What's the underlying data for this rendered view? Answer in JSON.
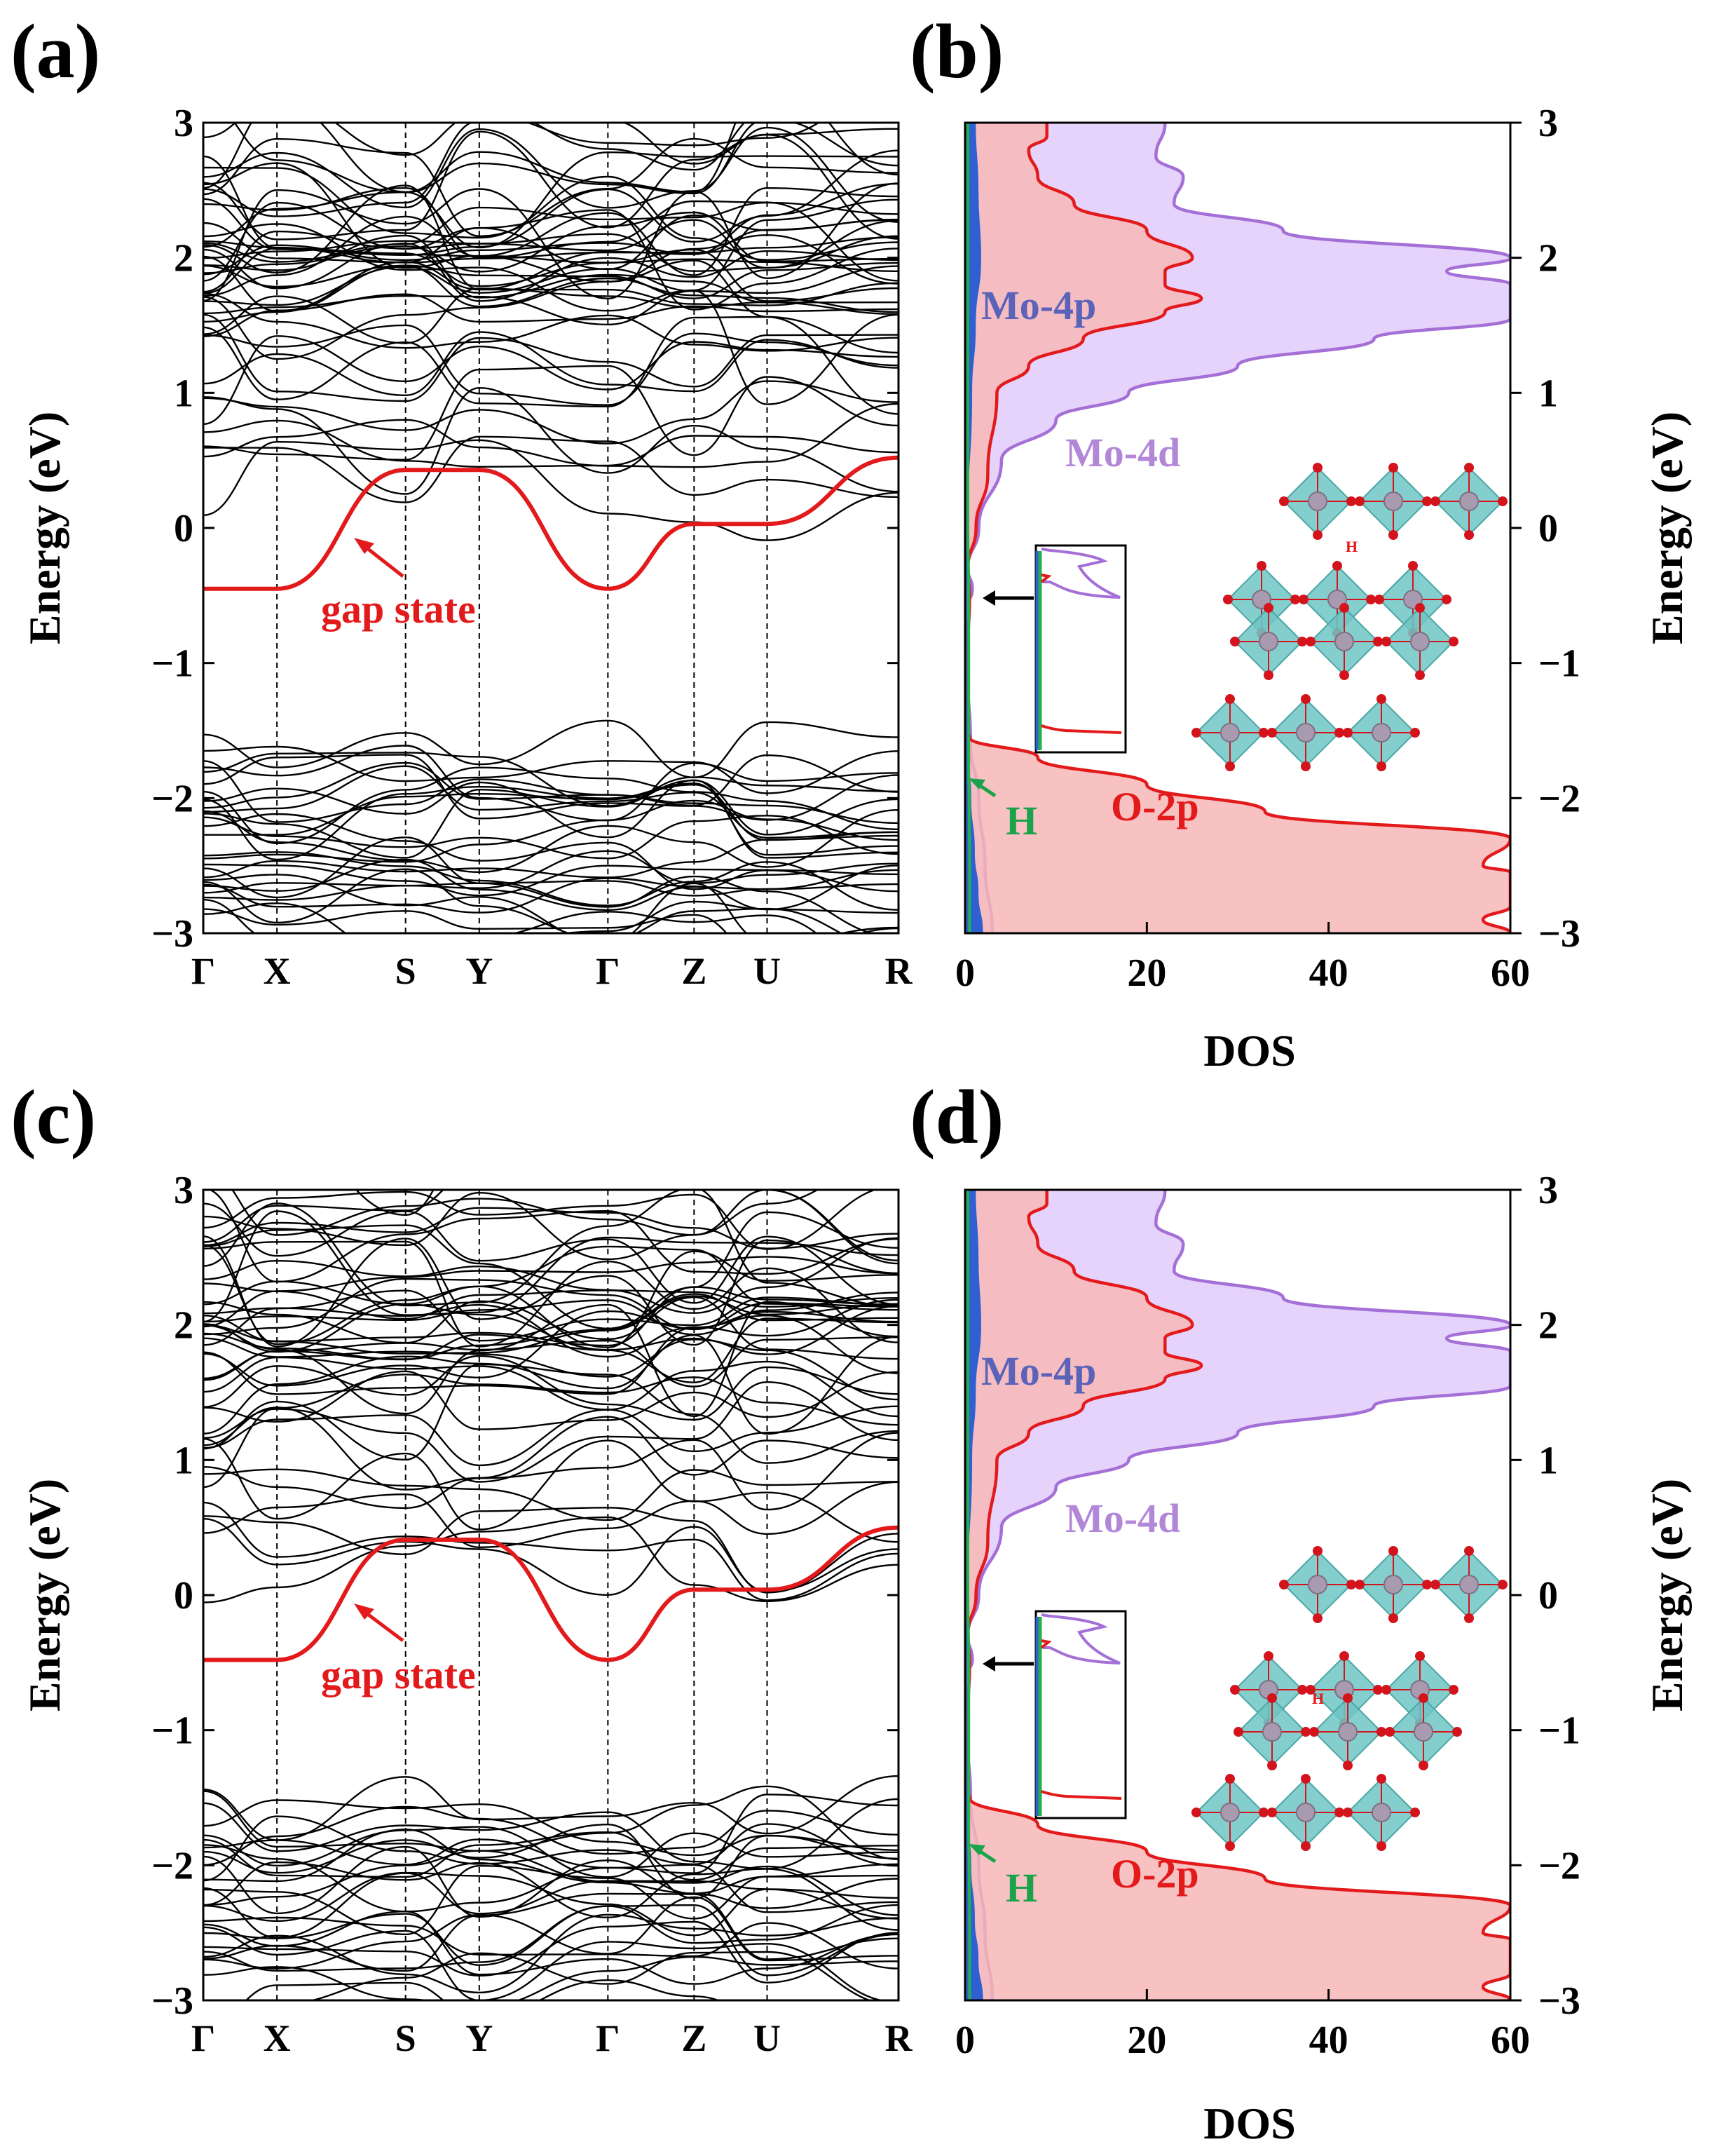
{
  "colors": {
    "band": "#000000",
    "gap_state": "#e31a1c",
    "o2p_line": "#e31a1c",
    "o2p_fill": "#f7b7b7",
    "mo4d_line": "#a46fd6",
    "mo4d_fill": "#e6d3fb",
    "mo4p_fill": "#2f5fd0",
    "h_line": "#22b14c",
    "octa_fill": "#6fc6c4",
    "mo_atom": "#a89bb0",
    "o_atom": "#d4141c"
  },
  "annotations": {
    "gap_state": "gap state",
    "mo4p": "Mo-4p",
    "mo4d": "Mo-4d",
    "o2p": "O-2p",
    "h": "H",
    "h_small": "H"
  },
  "chart_data": [
    {
      "id": "a",
      "panel_label": "(a)",
      "type": "line",
      "title": "",
      "xlabel": "",
      "ylabel": "Energy (eV)",
      "ylim": [
        -3,
        3
      ],
      "yticks": [
        "3",
        "2",
        "1",
        "0",
        "−1",
        "−2",
        "−3"
      ],
      "kpoints": [
        "Γ",
        "X",
        "S",
        "Y",
        "Γ",
        "Z",
        "U",
        "R"
      ],
      "kpositions": [
        0,
        0.106,
        0.291,
        0.397,
        0.582,
        0.706,
        0.811,
        1.0
      ],
      "gap_state": {
        "name": "gap state",
        "k": [
          0,
          0.106,
          0.291,
          0.397,
          0.582,
          0.706,
          0.811,
          1.0
        ],
        "energy": [
          -0.45,
          -0.45,
          0.43,
          0.43,
          -0.45,
          0.03,
          0.03,
          0.52
        ]
      },
      "bands_note": "dense conduction bands 0.2 to 3 eV and valence bands -1.6 to -3 eV"
    },
    {
      "id": "b",
      "panel_label": "(b)",
      "type": "area",
      "title": "",
      "xlabel": "DOS",
      "ylabel": "Energy (eV)",
      "xlim": [
        0,
        60
      ],
      "ylim": [
        -3,
        3
      ],
      "xticks": [
        "0",
        "20",
        "40",
        "60"
      ],
      "yticks": [
        "3",
        "2",
        "1",
        "0",
        "−1",
        "−2",
        "−3"
      ],
      "series": [
        {
          "name": "Mo-4d",
          "energy": [
            -3,
            -2.5,
            -2,
            -1.6,
            -1.0,
            -0.6,
            -0.45,
            -0.3,
            0,
            0.5,
            0.8,
            1.0,
            1.2,
            1.4,
            1.55,
            1.8,
            1.9,
            2.0,
            2.2,
            2.4,
            2.6,
            2.75,
            3.0
          ],
          "dos": [
            3,
            2.2,
            1.5,
            0.6,
            0.2,
            0.2,
            0.8,
            0.3,
            1.5,
            4,
            10,
            18,
            30,
            45,
            60,
            60,
            53,
            60,
            35,
            23,
            24,
            21,
            22
          ]
        },
        {
          "name": "O-2p",
          "energy": [
            -3,
            -2.9,
            -2.8,
            -2.55,
            -2.5,
            -2.3,
            -2.1,
            -1.9,
            -1.7,
            -1.55,
            -1.5,
            -1.0,
            -0.5,
            -0.3,
            0,
            0.4,
            1.0,
            1.2,
            1.4,
            1.6,
            1.7,
            1.8,
            1.9,
            2.0,
            2.2,
            2.4,
            2.6,
            2.8,
            2.9,
            3.0
          ],
          "dos": [
            60,
            57,
            60,
            60,
            57,
            60,
            33,
            20,
            8,
            0.5,
            0.2,
            0.2,
            0.5,
            0.3,
            1.2,
            2.5,
            3.5,
            7,
            13,
            22,
            26,
            22,
            22,
            25,
            20,
            12,
            8,
            7,
            9,
            9
          ]
        },
        {
          "name": "Mo-4p",
          "energy": [
            -3,
            -2.7,
            -2.4,
            -2.0,
            -1.6,
            -1.0,
            0,
            1.0,
            1.5,
            2.0,
            2.5,
            3.0
          ],
          "dos": [
            1.8,
            1.3,
            0.9,
            0.5,
            0.1,
            0.05,
            0.1,
            0.6,
            1.0,
            1.6,
            1.3,
            1.0
          ]
        },
        {
          "name": "H",
          "energy": [
            -3,
            -2.5,
            -2.0,
            -1.8,
            -1.0,
            -0.45,
            0,
            1.0,
            2.0,
            3.0
          ],
          "dos": [
            0.5,
            0.5,
            0.45,
            0.4,
            0.4,
            0.4,
            0.3,
            0.3,
            0.3,
            0.3
          ]
        }
      ]
    },
    {
      "id": "c",
      "panel_label": "(c)",
      "type": "line",
      "title": "",
      "xlabel": "",
      "ylabel": "Energy (eV)",
      "ylim": [
        -3,
        3
      ],
      "yticks": [
        "3",
        "2",
        "1",
        "0",
        "−1",
        "−2",
        "−3"
      ],
      "kpoints": [
        "Γ",
        "X",
        "S",
        "Y",
        "Γ",
        "Z",
        "U",
        "R"
      ],
      "kpositions": [
        0,
        0.106,
        0.291,
        0.397,
        0.582,
        0.706,
        0.811,
        1.0
      ],
      "gap_state": {
        "name": "gap state",
        "k": [
          0,
          0.106,
          0.291,
          0.397,
          0.582,
          0.706,
          0.811,
          1.0
        ],
        "energy": [
          -0.48,
          -0.48,
          0.41,
          0.41,
          -0.48,
          0.04,
          0.04,
          0.5
        ]
      },
      "bands_note": "dense conduction bands 0.1 to 3 eV and valence bands -1.5 to -3 eV"
    },
    {
      "id": "d",
      "panel_label": "(d)",
      "type": "area",
      "title": "",
      "xlabel": "DOS",
      "ylabel": "Energy (eV)",
      "xlim": [
        0,
        60
      ],
      "ylim": [
        -3,
        3
      ],
      "xticks": [
        "0",
        "20",
        "40",
        "60"
      ],
      "yticks": [
        "3",
        "2",
        "1",
        "0",
        "−1",
        "−2",
        "−3"
      ],
      "series": [
        {
          "name": "Mo-4d",
          "energy": [
            -3,
            -2.5,
            -2,
            -1.5,
            -1.0,
            -0.6,
            -0.48,
            -0.3,
            0,
            0.5,
            0.8,
            1.0,
            1.2,
            1.4,
            1.55,
            1.8,
            1.9,
            2.0,
            2.2,
            2.4,
            2.6,
            2.75,
            3.0
          ],
          "dos": [
            3,
            2.2,
            1.5,
            0.6,
            0.2,
            0.2,
            0.8,
            0.3,
            1.5,
            4,
            10,
            18,
            30,
            45,
            60,
            60,
            53,
            60,
            35,
            23,
            24,
            21,
            22
          ]
        },
        {
          "name": "O-2p",
          "energy": [
            -3,
            -2.9,
            -2.8,
            -2.55,
            -2.5,
            -2.3,
            -2.1,
            -1.9,
            -1.7,
            -1.5,
            -1.45,
            -1.0,
            -0.5,
            -0.3,
            0,
            0.4,
            1.0,
            1.2,
            1.4,
            1.6,
            1.7,
            1.8,
            1.9,
            2.0,
            2.2,
            2.4,
            2.6,
            2.8,
            2.9,
            3.0
          ],
          "dos": [
            60,
            57,
            60,
            60,
            57,
            60,
            33,
            20,
            8,
            0.5,
            0.2,
            0.2,
            0.5,
            0.3,
            1.2,
            2.5,
            3.5,
            7,
            13,
            22,
            26,
            22,
            22,
            25,
            20,
            12,
            8,
            7,
            9,
            9
          ]
        },
        {
          "name": "Mo-4p",
          "energy": [
            -3,
            -2.7,
            -2.4,
            -2.0,
            -1.6,
            -1.0,
            0,
            1.0,
            1.5,
            2.0,
            2.5,
            3.0
          ],
          "dos": [
            1.8,
            1.3,
            0.9,
            0.5,
            0.1,
            0.05,
            0.1,
            0.6,
            1.0,
            1.6,
            1.3,
            1.0
          ]
        },
        {
          "name": "H",
          "energy": [
            -3,
            -2.5,
            -2.0,
            -1.8,
            -1.0,
            -0.48,
            0,
            1.0,
            2.0,
            3.0
          ],
          "dos": [
            0.5,
            0.5,
            0.45,
            0.4,
            0.4,
            0.4,
            0.3,
            0.3,
            0.3,
            0.3
          ]
        }
      ]
    }
  ]
}
